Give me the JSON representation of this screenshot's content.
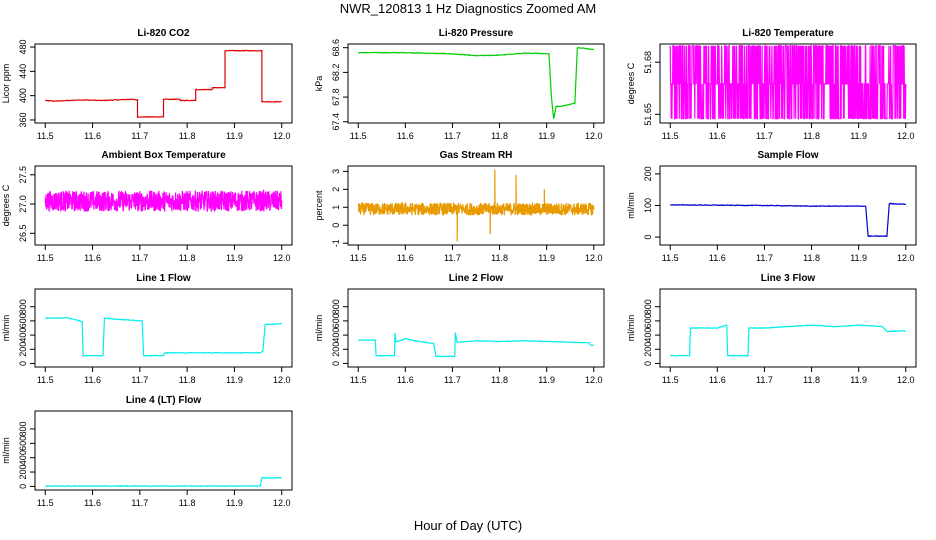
{
  "figure": {
    "title": "NWR_120813  1 Hz Diagnostics Zoomed AM",
    "xlabel": "Hour of Day (UTC)"
  },
  "chart_data": [
    {
      "type": "line",
      "title": "Li-820 CO2",
      "xlabel": "",
      "ylabel": "Licor ppm",
      "color": "#dd0000",
      "xlim": [
        11.5,
        12.0
      ],
      "ylim": [
        355,
        485
      ],
      "xticks": [
        "11.5",
        "11.6",
        "11.7",
        "11.8",
        "11.9",
        "12.0"
      ],
      "yticks": [
        "360",
        "400",
        "440",
        "480"
      ],
      "x": [
        11.5,
        11.52,
        11.58,
        11.62,
        11.68,
        11.695,
        11.695,
        11.75,
        11.75,
        11.785,
        11.785,
        11.818,
        11.818,
        11.853,
        11.853,
        11.88,
        11.88,
        11.958,
        11.958,
        12.0
      ],
      "y": [
        392,
        391,
        393,
        392,
        394,
        393,
        365,
        365,
        394,
        394,
        392,
        392,
        410,
        410,
        413,
        413,
        474,
        474,
        390,
        390
      ]
    },
    {
      "type": "line",
      "title": "Li-820 Pressure",
      "xlabel": "",
      "ylabel": "kPa",
      "color": "#00cc00",
      "xlim": [
        11.5,
        12.0
      ],
      "ylim": [
        67.38,
        68.66
      ],
      "xticks": [
        "11.5",
        "11.6",
        "11.7",
        "11.8",
        "11.9",
        "12.0"
      ],
      "yticks": [
        "67.4",
        "67.8",
        "68.2",
        "68.6"
      ],
      "x": [
        11.5,
        11.6,
        11.7,
        11.75,
        11.8,
        11.85,
        11.88,
        11.905,
        11.91,
        11.915,
        11.92,
        11.93,
        11.96,
        11.965,
        11.97,
        12.0
      ],
      "y": [
        68.52,
        68.52,
        68.5,
        68.47,
        68.48,
        68.51,
        68.51,
        68.5,
        67.8,
        67.45,
        67.65,
        67.65,
        67.7,
        68.6,
        68.6,
        68.57
      ]
    },
    {
      "type": "line",
      "title": "Li-820 Temperature",
      "xlabel": "",
      "ylabel": "degrees C",
      "color": "#ff00ff",
      "xlim": [
        11.5,
        12.0
      ],
      "ylim": [
        51.645,
        51.6905
      ],
      "xticks": [
        "11.5",
        "11.6",
        "11.7",
        "11.8",
        "11.9",
        "12.0"
      ],
      "yticks": [
        "51.65",
        "51.68"
      ],
      "levels": [
        51.6895,
        51.6675,
        51.6475
      ]
    },
    {
      "type": "line",
      "title": "Ambient Box Temperature",
      "xlabel": "",
      "ylabel": "degrees C",
      "color": "#ff00ff",
      "xlim": [
        11.5,
        12.0
      ],
      "ylim": [
        26.3,
        27.65
      ],
      "xticks": [
        "11.5",
        "11.6",
        "11.7",
        "11.8",
        "11.9",
        "12.0"
      ],
      "yticks": [
        "26.5",
        "27.0",
        "27.5"
      ],
      "mean": 27.05,
      "noise": 0.18
    },
    {
      "type": "line",
      "title": "Gas Stream RH",
      "xlabel": "",
      "ylabel": "percent",
      "color": "#e89a00",
      "xlim": [
        11.5,
        12.0
      ],
      "ylim": [
        -1.1,
        3.3
      ],
      "xticks": [
        "11.5",
        "11.6",
        "11.7",
        "11.8",
        "11.9",
        "12.0"
      ],
      "yticks": [
        "-1",
        "0",
        "1",
        "2",
        "3"
      ],
      "mean": 0.9,
      "noise": 0.35,
      "spikes": [
        [
          11.71,
          -0.9
        ],
        [
          11.79,
          3.1
        ],
        [
          11.835,
          2.8
        ],
        [
          11.78,
          -0.5
        ],
        [
          11.895,
          2.0
        ]
      ]
    },
    {
      "type": "line",
      "title": "Sample Flow",
      "xlabel": "",
      "ylabel": "ml/min",
      "color": "#0000cc",
      "xlim": [
        11.5,
        12.0
      ],
      "ylim": [
        -25,
        225
      ],
      "xticks": [
        "11.5",
        "11.6",
        "11.7",
        "11.8",
        "11.9",
        "12.0"
      ],
      "yticks": [
        "0",
        "100",
        "200"
      ],
      "x": [
        11.5,
        11.7,
        11.8,
        11.915,
        11.92,
        11.96,
        11.965,
        12.0
      ],
      "y": [
        102,
        100,
        98,
        98,
        3,
        3,
        106,
        104
      ]
    },
    {
      "type": "line",
      "title": "Line 1 Flow",
      "xlabel": "",
      "ylabel": "ml/min",
      "color": "#00eeee",
      "xlim": [
        11.5,
        12.0
      ],
      "ylim": [
        -50,
        1050
      ],
      "xticks": [
        "11.5",
        "11.6",
        "11.7",
        "11.8",
        "11.9",
        "12.0"
      ],
      "yticks": [
        "0",
        "200",
        "400",
        "600",
        "800"
      ],
      "x": [
        11.5,
        11.54,
        11.545,
        11.578,
        11.58,
        11.622,
        11.625,
        11.66,
        11.705,
        11.708,
        11.75,
        11.752,
        11.955,
        11.96,
        11.965,
        12.0
      ],
      "y": [
        640,
        640,
        650,
        590,
        110,
        110,
        640,
        620,
        600,
        110,
        110,
        150,
        150,
        170,
        550,
        560
      ]
    },
    {
      "type": "line",
      "title": "Line 2 Flow",
      "xlabel": "",
      "ylabel": "ml/min",
      "color": "#00eeee",
      "xlim": [
        11.5,
        12.0
      ],
      "ylim": [
        -50,
        1050
      ],
      "xticks": [
        "11.5",
        "11.6",
        "11.7",
        "11.8",
        "11.9",
        "12.0"
      ],
      "yticks": [
        "0",
        "200",
        "400",
        "600",
        "800"
      ],
      "x": [
        11.5,
        11.536,
        11.538,
        11.577,
        11.578,
        11.58,
        11.6,
        11.62,
        11.66,
        11.665,
        11.705,
        11.706,
        11.71,
        11.75,
        11.8,
        11.85,
        11.9,
        11.95,
        11.99,
        11.995,
        12.0
      ],
      "y": [
        330,
        330,
        110,
        110,
        430,
        300,
        350,
        320,
        280,
        100,
        100,
        440,
        300,
        320,
        310,
        320,
        310,
        300,
        290,
        250,
        260
      ]
    },
    {
      "type": "line",
      "title": "Line 3 Flow",
      "xlabel": "",
      "ylabel": "ml/min",
      "color": "#00eeee",
      "xlim": [
        11.5,
        12.0
      ],
      "ylim": [
        -50,
        1050
      ],
      "xticks": [
        "11.5",
        "11.6",
        "11.7",
        "11.8",
        "11.9",
        "12.0"
      ],
      "yticks": [
        "0",
        "200",
        "400",
        "600",
        "800"
      ],
      "x": [
        11.5,
        11.541,
        11.543,
        11.6,
        11.62,
        11.622,
        11.665,
        11.667,
        11.7,
        11.75,
        11.8,
        11.85,
        11.9,
        11.95,
        11.96,
        12.0
      ],
      "y": [
        110,
        110,
        500,
        500,
        540,
        110,
        110,
        500,
        500,
        520,
        540,
        520,
        540,
        520,
        450,
        460
      ]
    },
    {
      "type": "line",
      "title": "Line 4 (LT) Flow",
      "xlabel": "",
      "ylabel": "ml/min",
      "color": "#00eeee",
      "xlim": [
        11.5,
        12.0
      ],
      "ylim": [
        -50,
        1050
      ],
      "xticks": [
        "11.5",
        "11.6",
        "11.7",
        "11.8",
        "11.9",
        "12.0"
      ],
      "yticks": [
        "0",
        "200",
        "400",
        "600",
        "800"
      ],
      "x": [
        11.5,
        11.955,
        11.958,
        12.0
      ],
      "y": [
        5,
        5,
        120,
        120
      ]
    }
  ]
}
